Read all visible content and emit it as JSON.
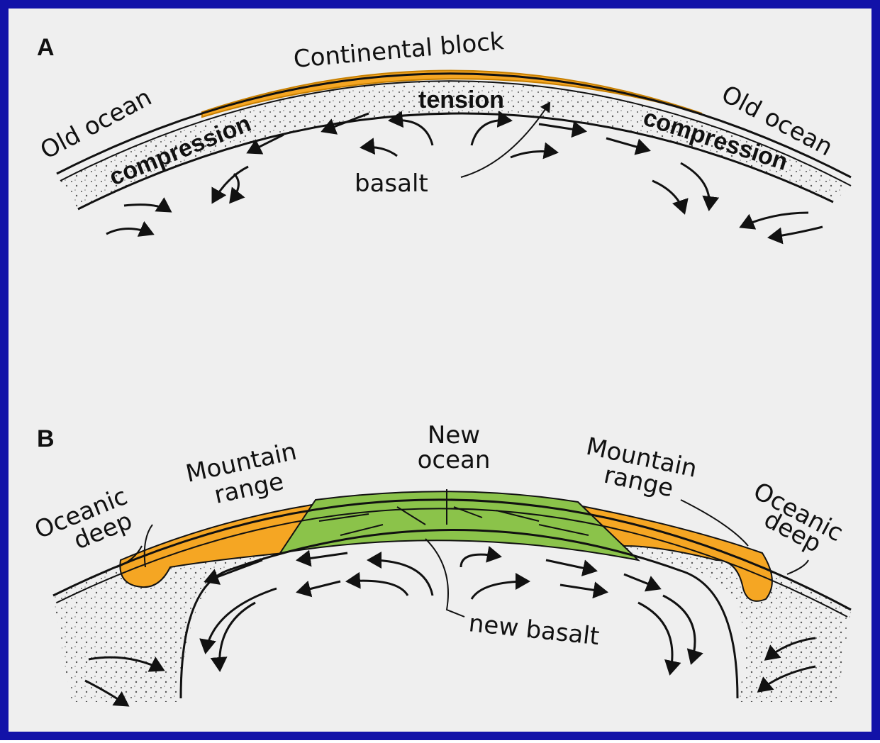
{
  "panel_a": {
    "label": "A",
    "continental_block": "Continental block",
    "old_ocean_left": "Old ocean",
    "old_ocean_right": "Old ocean",
    "tension": "tension",
    "compression_left": "compression",
    "compression_right": "compression",
    "basalt": "basalt"
  },
  "panel_b": {
    "label": "B",
    "new_ocean": [
      "New",
      "ocean"
    ],
    "mountain_range_left": [
      "Mountain",
      "range"
    ],
    "mountain_range_right": [
      "Mountain",
      "range"
    ],
    "oceanic_deep_left": [
      "Oceanic",
      "deep"
    ],
    "oceanic_deep_right": [
      "Oceanic",
      "deep"
    ],
    "new_basalt": "new basalt"
  }
}
